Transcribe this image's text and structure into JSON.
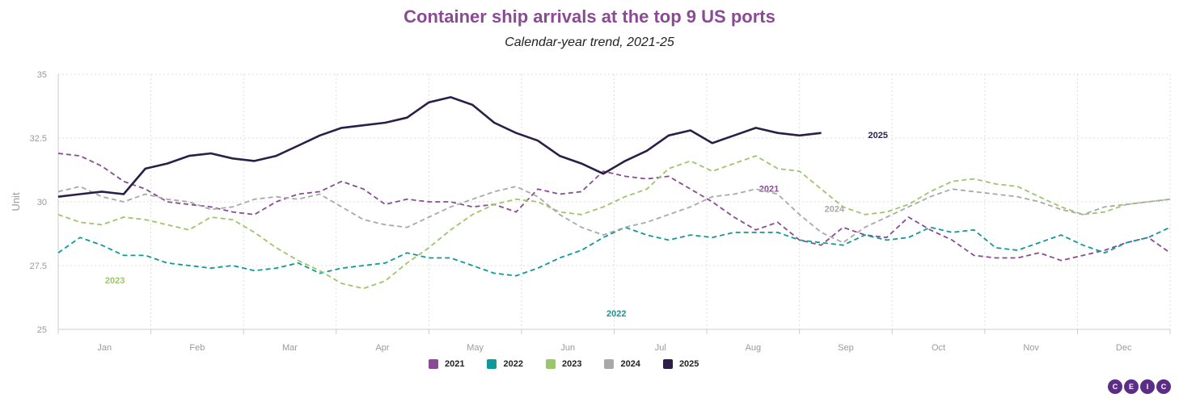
{
  "chart_data": {
    "type": "line",
    "title": "Container ship arrivals at the top 9 US ports",
    "subtitle": "Calendar-year trend, 2021-25",
    "xlabel": "",
    "ylabel": "Unit",
    "ylim": [
      25,
      35
    ],
    "yticks": [
      "25",
      "27.5",
      "30",
      "32.5",
      "35"
    ],
    "xticks": [
      "Jan",
      "Feb",
      "Mar",
      "Apr",
      "May",
      "Jun",
      "Jul",
      "Aug",
      "Sep",
      "Oct",
      "Nov",
      "Dec"
    ],
    "x_unit": "week of year",
    "grid": true,
    "legend_position": "bottom",
    "series": [
      {
        "name": "2021",
        "color": "#8a4b94",
        "dash": true,
        "label": "2021",
        "points": [
          [
            1,
            31.9
          ],
          [
            2,
            31.8
          ],
          [
            3,
            31.4
          ],
          [
            4,
            30.8
          ],
          [
            5,
            30.5
          ],
          [
            6,
            30.0
          ],
          [
            7,
            29.9
          ],
          [
            8,
            29.8
          ],
          [
            9,
            29.6
          ],
          [
            10,
            29.5
          ],
          [
            11,
            30.0
          ],
          [
            12,
            30.3
          ],
          [
            13,
            30.4
          ],
          [
            14,
            30.8
          ],
          [
            15,
            30.5
          ],
          [
            16,
            29.9
          ],
          [
            17,
            30.1
          ],
          [
            18,
            30.0
          ],
          [
            19,
            30.0
          ],
          [
            20,
            29.8
          ],
          [
            21,
            29.9
          ],
          [
            22,
            29.6
          ],
          [
            23,
            30.5
          ],
          [
            24,
            30.3
          ],
          [
            25,
            30.4
          ],
          [
            26,
            31.2
          ],
          [
            27,
            31.0
          ],
          [
            28,
            30.9
          ],
          [
            29,
            31.0
          ],
          [
            30,
            30.5
          ],
          [
            31,
            30.0
          ],
          [
            32,
            29.4
          ],
          [
            33,
            28.9
          ],
          [
            34,
            29.2
          ],
          [
            35,
            28.5
          ],
          [
            36,
            28.3
          ],
          [
            37,
            29.0
          ],
          [
            38,
            28.7
          ],
          [
            39,
            28.6
          ],
          [
            40,
            29.4
          ],
          [
            41,
            28.9
          ],
          [
            42,
            28.5
          ],
          [
            43,
            27.9
          ],
          [
            44,
            27.8
          ],
          [
            45,
            27.8
          ],
          [
            46,
            28.0
          ],
          [
            47,
            27.7
          ],
          [
            48,
            27.9
          ],
          [
            49,
            28.1
          ],
          [
            50,
            28.4
          ],
          [
            51,
            28.6
          ],
          [
            52,
            28.0
          ]
        ]
      },
      {
        "name": "2022",
        "color": "#0e9a98",
        "dash": true,
        "label": "2022",
        "points": [
          [
            1,
            28.0
          ],
          [
            2,
            28.6
          ],
          [
            3,
            28.3
          ],
          [
            4,
            27.9
          ],
          [
            5,
            27.9
          ],
          [
            6,
            27.6
          ],
          [
            7,
            27.5
          ],
          [
            8,
            27.4
          ],
          [
            9,
            27.5
          ],
          [
            10,
            27.3
          ],
          [
            11,
            27.4
          ],
          [
            12,
            27.6
          ],
          [
            13,
            27.2
          ],
          [
            14,
            27.4
          ],
          [
            15,
            27.5
          ],
          [
            16,
            27.6
          ],
          [
            17,
            28.0
          ],
          [
            18,
            27.8
          ],
          [
            19,
            27.8
          ],
          [
            20,
            27.5
          ],
          [
            21,
            27.2
          ],
          [
            22,
            27.1
          ],
          [
            23,
            27.4
          ],
          [
            24,
            27.8
          ],
          [
            25,
            28.1
          ],
          [
            26,
            28.6
          ],
          [
            27,
            29.0
          ],
          [
            28,
            28.7
          ],
          [
            29,
            28.5
          ],
          [
            30,
            28.7
          ],
          [
            31,
            28.6
          ],
          [
            32,
            28.8
          ],
          [
            33,
            28.8
          ],
          [
            34,
            28.8
          ],
          [
            35,
            28.5
          ],
          [
            36,
            28.4
          ],
          [
            37,
            28.3
          ],
          [
            38,
            28.7
          ],
          [
            39,
            28.5
          ],
          [
            40,
            28.6
          ],
          [
            41,
            29.0
          ],
          [
            42,
            28.8
          ],
          [
            43,
            28.9
          ],
          [
            44,
            28.2
          ],
          [
            45,
            28.1
          ],
          [
            46,
            28.4
          ],
          [
            47,
            28.7
          ],
          [
            48,
            28.3
          ],
          [
            49,
            28.0
          ],
          [
            50,
            28.4
          ],
          [
            51,
            28.6
          ],
          [
            52,
            29.0
          ]
        ]
      },
      {
        "name": "2023",
        "color": "#9cc66b",
        "dash": true,
        "label": "2023",
        "points": [
          [
            1,
            29.5
          ],
          [
            2,
            29.2
          ],
          [
            3,
            29.1
          ],
          [
            4,
            29.4
          ],
          [
            5,
            29.3
          ],
          [
            6,
            29.1
          ],
          [
            7,
            28.9
          ],
          [
            8,
            29.4
          ],
          [
            9,
            29.3
          ],
          [
            10,
            28.8
          ],
          [
            11,
            28.2
          ],
          [
            12,
            27.7
          ],
          [
            13,
            27.3
          ],
          [
            14,
            26.8
          ],
          [
            15,
            26.6
          ],
          [
            16,
            26.9
          ],
          [
            17,
            27.6
          ],
          [
            18,
            28.2
          ],
          [
            19,
            28.9
          ],
          [
            20,
            29.5
          ],
          [
            21,
            29.9
          ],
          [
            22,
            30.1
          ],
          [
            23,
            30.0
          ],
          [
            24,
            29.6
          ],
          [
            25,
            29.5
          ],
          [
            26,
            29.8
          ],
          [
            27,
            30.2
          ],
          [
            28,
            30.5
          ],
          [
            29,
            31.3
          ],
          [
            30,
            31.6
          ],
          [
            31,
            31.2
          ],
          [
            32,
            31.5
          ],
          [
            33,
            31.8
          ],
          [
            34,
            31.3
          ],
          [
            35,
            31.2
          ],
          [
            36,
            30.5
          ],
          [
            37,
            29.8
          ],
          [
            38,
            29.5
          ],
          [
            39,
            29.6
          ],
          [
            40,
            29.9
          ],
          [
            41,
            30.4
          ],
          [
            42,
            30.8
          ],
          [
            43,
            30.9
          ],
          [
            44,
            30.7
          ],
          [
            45,
            30.6
          ],
          [
            46,
            30.2
          ],
          [
            47,
            29.8
          ],
          [
            48,
            29.5
          ],
          [
            49,
            29.6
          ],
          [
            50,
            29.9
          ],
          [
            51,
            30.0
          ],
          [
            52,
            30.1
          ]
        ]
      },
      {
        "name": "2024",
        "color": "#a9a9a9",
        "dash": true,
        "label": "2024",
        "points": [
          [
            1,
            30.4
          ],
          [
            2,
            30.6
          ],
          [
            3,
            30.2
          ],
          [
            4,
            30.0
          ],
          [
            5,
            30.3
          ],
          [
            6,
            30.1
          ],
          [
            7,
            30.0
          ],
          [
            8,
            29.7
          ],
          [
            9,
            29.8
          ],
          [
            10,
            30.1
          ],
          [
            11,
            30.2
          ],
          [
            12,
            30.1
          ],
          [
            13,
            30.3
          ],
          [
            14,
            29.8
          ],
          [
            15,
            29.3
          ],
          [
            16,
            29.1
          ],
          [
            17,
            29.0
          ],
          [
            18,
            29.4
          ],
          [
            19,
            29.8
          ],
          [
            20,
            30.1
          ],
          [
            21,
            30.4
          ],
          [
            22,
            30.6
          ],
          [
            23,
            30.2
          ],
          [
            24,
            29.5
          ],
          [
            25,
            29.0
          ],
          [
            26,
            28.7
          ],
          [
            27,
            29.0
          ],
          [
            28,
            29.2
          ],
          [
            29,
            29.5
          ],
          [
            30,
            29.8
          ],
          [
            31,
            30.2
          ],
          [
            32,
            30.3
          ],
          [
            33,
            30.5
          ],
          [
            34,
            30.3
          ],
          [
            35,
            29.5
          ],
          [
            36,
            28.8
          ],
          [
            37,
            28.4
          ],
          [
            38,
            29.0
          ],
          [
            39,
            29.4
          ],
          [
            40,
            29.8
          ],
          [
            41,
            30.2
          ],
          [
            42,
            30.5
          ],
          [
            43,
            30.4
          ],
          [
            44,
            30.3
          ],
          [
            45,
            30.2
          ],
          [
            46,
            30.0
          ],
          [
            47,
            29.7
          ],
          [
            48,
            29.5
          ],
          [
            49,
            29.8
          ],
          [
            50,
            29.9
          ],
          [
            51,
            30.0
          ],
          [
            52,
            30.1
          ]
        ]
      },
      {
        "name": "2025",
        "color": "#2b1f48",
        "dash": false,
        "label": "2025",
        "points": [
          [
            1,
            30.2
          ],
          [
            2,
            30.3
          ],
          [
            3,
            30.4
          ],
          [
            4,
            30.3
          ],
          [
            5,
            31.3
          ],
          [
            6,
            31.5
          ],
          [
            7,
            31.8
          ],
          [
            8,
            31.9
          ],
          [
            9,
            31.7
          ],
          [
            10,
            31.6
          ],
          [
            11,
            31.8
          ],
          [
            12,
            32.2
          ],
          [
            13,
            32.6
          ],
          [
            14,
            32.9
          ],
          [
            15,
            33.0
          ],
          [
            16,
            33.1
          ],
          [
            17,
            33.3
          ],
          [
            18,
            33.9
          ],
          [
            19,
            34.1
          ],
          [
            20,
            33.8
          ],
          [
            21,
            33.1
          ],
          [
            22,
            32.7
          ],
          [
            23,
            32.4
          ],
          [
            24,
            31.8
          ],
          [
            25,
            31.5
          ],
          [
            26,
            31.1
          ],
          [
            27,
            31.6
          ],
          [
            28,
            32.0
          ],
          [
            29,
            32.6
          ],
          [
            30,
            32.8
          ],
          [
            31,
            32.3
          ],
          [
            32,
            32.6
          ],
          [
            33,
            32.9
          ],
          [
            34,
            32.7
          ],
          [
            35,
            32.6
          ],
          [
            36,
            32.7
          ]
        ]
      }
    ]
  },
  "legend": {
    "items": [
      "2021",
      "2022",
      "2023",
      "2024",
      "2025"
    ]
  },
  "logo": {
    "letters": [
      "C",
      "E",
      "I",
      "C"
    ]
  }
}
